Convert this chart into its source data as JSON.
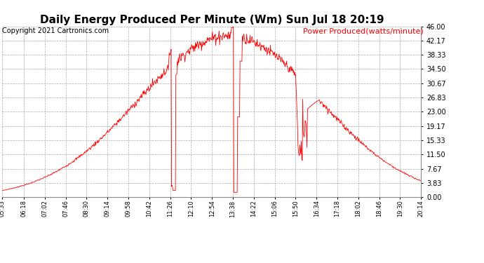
{
  "title": "Daily Energy Produced Per Minute (Wm) Sun Jul 18 20:19",
  "copyright": "Copyright 2021 Cartronics.com",
  "legend_label": "Power Produced(watts/minute)",
  "y_ticks": [
    0.0,
    3.83,
    7.67,
    11.5,
    15.33,
    19.17,
    23.0,
    26.83,
    30.67,
    34.5,
    38.33,
    42.17,
    46.0
  ],
  "y_max": 46.0,
  "y_min": 0.0,
  "line_color": "#FF0000",
  "background_color": "#FFFFFF",
  "grid_color": "#AAAAAA",
  "title_fontsize": 11,
  "copyright_fontsize": 7,
  "legend_fontsize": 8,
  "x_labels": [
    "05:33",
    "06:18",
    "07:02",
    "07:46",
    "08:30",
    "09:14",
    "09:58",
    "10:42",
    "11:26",
    "12:10",
    "12:54",
    "13:38",
    "14:22",
    "15:06",
    "15:50",
    "16:34",
    "17:18",
    "18:02",
    "18:46",
    "19:30",
    "20:14"
  ]
}
